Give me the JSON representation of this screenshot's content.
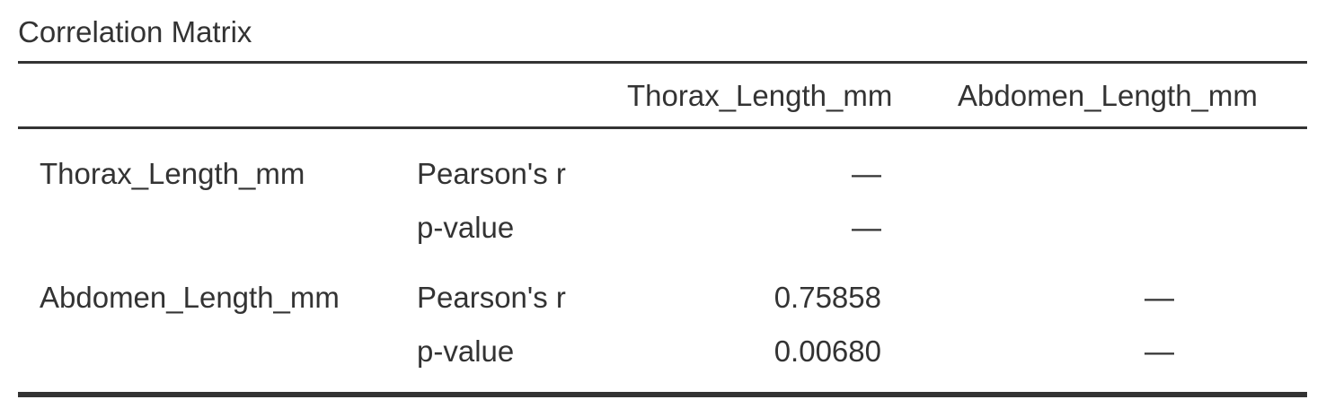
{
  "table": {
    "title": "Correlation Matrix",
    "columns": [
      "Thorax_Length_mm",
      "Abdomen_Length_mm"
    ],
    "rows": [
      {
        "variable": "Thorax_Length_mm",
        "stats": [
          {
            "label": "Pearson's r",
            "values": [
              "—",
              ""
            ]
          },
          {
            "label": "p-value",
            "values": [
              "—",
              ""
            ]
          }
        ]
      },
      {
        "variable": "Abdomen_Length_mm",
        "stats": [
          {
            "label": "Pearson's r",
            "values": [
              "0.75858",
              "—"
            ]
          },
          {
            "label": "p-value",
            "values": [
              "0.00680",
              "—"
            ]
          }
        ]
      }
    ]
  }
}
